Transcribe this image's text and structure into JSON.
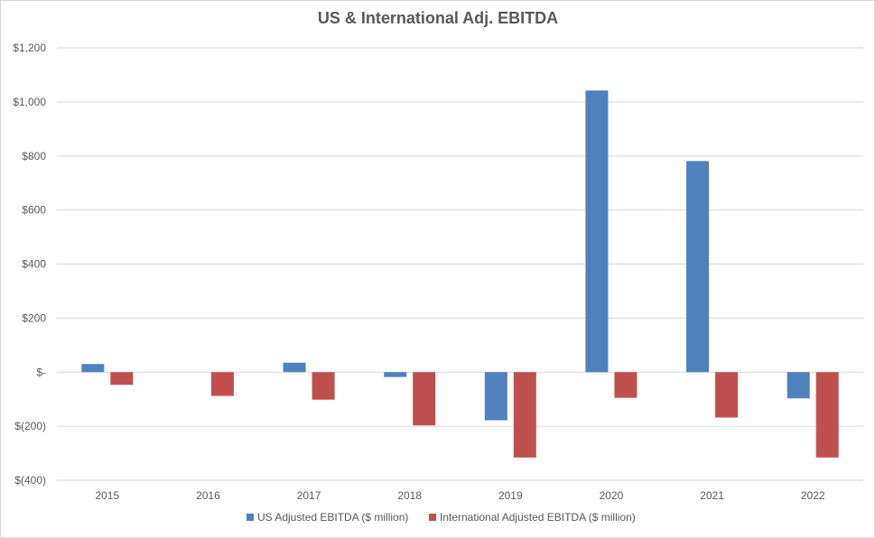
{
  "chart_data": {
    "type": "bar",
    "title": "US & International Adj. EBITDA",
    "xlabel": "",
    "ylabel": "",
    "categories": [
      "2015",
      "2016",
      "2017",
      "2018",
      "2019",
      "2020",
      "2021",
      "2022"
    ],
    "series": [
      {
        "name": "US Adjusted EBITDA ($ million)",
        "color": "#4f81bd",
        "values": [
          30,
          0,
          35,
          -18,
          -178,
          1042,
          781,
          -97
        ]
      },
      {
        "name": "International Adjusted EBITDA ($ million)",
        "color": "#c0504d",
        "values": [
          -47,
          -88,
          -102,
          -197,
          -316,
          -95,
          -168,
          -316
        ]
      }
    ],
    "ylim": [
      -400,
      1200
    ],
    "yticks": [
      1200,
      1000,
      800,
      600,
      400,
      200,
      0,
      -200,
      -400
    ],
    "ytick_labels": [
      "$1,200",
      "$1,000",
      "$800",
      "$600",
      "$400",
      "$200",
      "$-",
      "$(200)",
      "$(400)"
    ],
    "grid": true,
    "legend_position": "bottom"
  }
}
